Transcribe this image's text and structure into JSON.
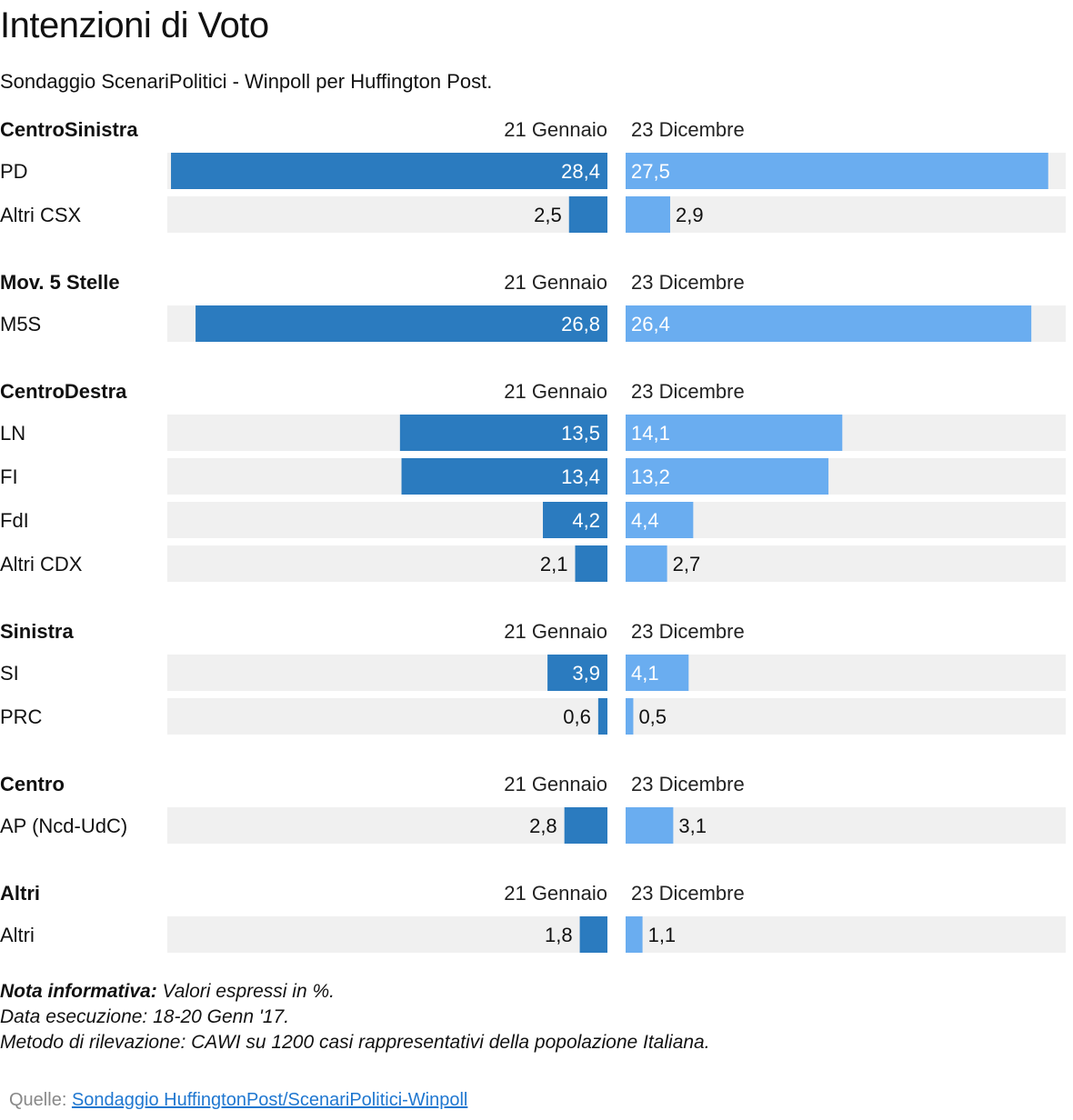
{
  "title": "Intenzioni di Voto",
  "subtitle": "Sondaggio ScenariPolitici - Winpoll per Huffington Post.",
  "colors": {
    "left_bar": "#2b7bbf",
    "right_bar": "#6aadf0",
    "track": "#f0f0f0"
  },
  "chart_data": {
    "type": "bar",
    "series": [
      {
        "name": "21 Gennaio"
      },
      {
        "name": "23 Dicembre"
      }
    ],
    "xlim": [
      0,
      30
    ],
    "groups": [
      {
        "name": "CentroSinistra",
        "col_left": "21 Gennaio",
        "col_right": "23 Dicembre",
        "rows": [
          {
            "label": "PD",
            "left": 28.4,
            "left_label": "28,4",
            "right": 27.5,
            "right_label": "27,5"
          },
          {
            "label": "Altri CSX",
            "left": 2.5,
            "left_label": "2,5",
            "right": 2.9,
            "right_label": "2,9"
          }
        ]
      },
      {
        "name": "Mov. 5 Stelle",
        "col_left": "21 Gennaio",
        "col_right": "23 Dicembre",
        "rows": [
          {
            "label": "M5S",
            "left": 26.8,
            "left_label": "26,8",
            "right": 26.4,
            "right_label": "26,4"
          }
        ]
      },
      {
        "name": "CentroDestra",
        "col_left": "21 Gennaio",
        "col_right": "23 Dicembre",
        "rows": [
          {
            "label": "LN",
            "left": 13.5,
            "left_label": "13,5",
            "right": 14.1,
            "right_label": "14,1"
          },
          {
            "label": "FI",
            "left": 13.4,
            "left_label": "13,4",
            "right": 13.2,
            "right_label": "13,2"
          },
          {
            "label": "FdI",
            "left": 4.2,
            "left_label": "4,2",
            "right": 4.4,
            "right_label": "4,4"
          },
          {
            "label": "Altri CDX",
            "left": 2.1,
            "left_label": "2,1",
            "right": 2.7,
            "right_label": "2,7"
          }
        ]
      },
      {
        "name": "Sinistra",
        "col_left": "21 Gennaio",
        "col_right": "23 Dicembre",
        "rows": [
          {
            "label": "SI",
            "left": 3.9,
            "left_label": "3,9",
            "right": 4.1,
            "right_label": "4,1"
          },
          {
            "label": "PRC",
            "left": 0.6,
            "left_label": "0,6",
            "right": 0.5,
            "right_label": "0,5"
          }
        ]
      },
      {
        "name": "Centro",
        "col_left": "21 Gennaio",
        "col_right": "23 Dicembre",
        "rows": [
          {
            "label": "AP (Ncd-UdC)",
            "left": 2.8,
            "left_label": "2,8",
            "right": 3.1,
            "right_label": "3,1"
          }
        ]
      },
      {
        "name": "Altri",
        "col_left": "21 Gennaio",
        "col_right": "23 Dicembre",
        "rows": [
          {
            "label": "Altri",
            "left": 1.8,
            "left_label": "1,8",
            "right": 1.1,
            "right_label": "1,1"
          }
        ]
      }
    ]
  },
  "notes": {
    "label": "Nota informativa:",
    "line1": " Valori espressi in %.",
    "line2": "Data esecuzione: 18-20 Genn '17.",
    "line3": "Metodo di rilevazione: CAWI su 1200 casi rappresentativi della popolazione Italiana."
  },
  "source": {
    "label": "Quelle: ",
    "link_text": "Sondaggio HuffingtonPost/ScenariPolitici-Winpoll"
  }
}
